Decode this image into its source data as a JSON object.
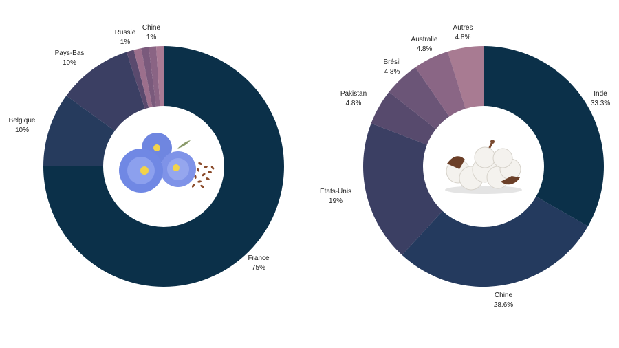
{
  "chart_data": [
    {
      "type": "donut",
      "center_image": "flax-flowers-and-seeds",
      "slices": [
        {
          "label": "France",
          "value": 75,
          "value_label": "75%",
          "color": "#0b3049"
        },
        {
          "label": "Belgique",
          "value": 10,
          "value_label": "10%",
          "color": "#263b5d"
        },
        {
          "label": "Pays-Bas",
          "value": 10,
          "value_label": "10%",
          "color": "#3b3f63"
        },
        {
          "label": "Russie",
          "value": 1,
          "value_label": "1%",
          "color": "#5a4a6e"
        },
        {
          "label": "Chine",
          "value": 1,
          "value_label": "1%",
          "color": "#9c6f8c"
        },
        {
          "label": "",
          "value": 1,
          "value_label": "",
          "color": "#7a5a7c"
        },
        {
          "label": "",
          "value": 1,
          "value_label": "",
          "color": "#8a6484"
        },
        {
          "label": "",
          "value": 1,
          "value_label": "",
          "color": "#a97a94"
        }
      ]
    },
    {
      "type": "donut",
      "center_image": "cotton-bolls",
      "slices": [
        {
          "label": "Inde",
          "value": 33.3,
          "value_label": "33.3%",
          "color": "#0b3049"
        },
        {
          "label": "Chine",
          "value": 28.6,
          "value_label": "28.6%",
          "color": "#243a5e"
        },
        {
          "label": "Etats-Unis",
          "value": 19,
          "value_label": "19%",
          "color": "#3b3f63"
        },
        {
          "label": "Pakistan",
          "value": 4.8,
          "value_label": "4.8%",
          "color": "#574a6d"
        },
        {
          "label": "Brésil",
          "value": 4.8,
          "value_label": "4.8%",
          "color": "#6b5577"
        },
        {
          "label": "Australie",
          "value": 4.8,
          "value_label": "4.8%",
          "color": "#8a6685"
        },
        {
          "label": "Autres",
          "value": 4.8,
          "value_label": "4.8%",
          "color": "#a87b92"
        }
      ]
    }
  ]
}
